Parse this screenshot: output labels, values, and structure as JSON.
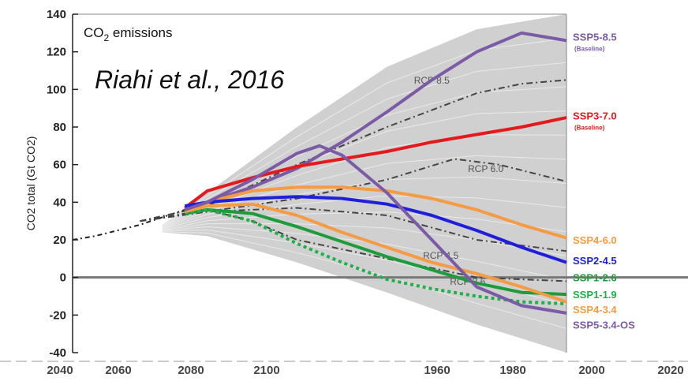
{
  "chart_data": {
    "type": "line",
    "panel_title": "CO",
    "panel_title_sub": "2",
    "panel_title_rest": " emissions",
    "citation": "Riahi et al., 2016",
    "ylabel": "CO2 total (Gt CO2)",
    "ylim": [
      -40,
      140
    ],
    "xlim": [
      1990,
      2100
    ],
    "y_ticks": [
      "140",
      "120",
      "100",
      "80",
      "60",
      "40",
      "20",
      "0",
      "-20",
      "-40"
    ],
    "x_tick_labels": [
      "2040",
      "2060",
      "2080",
      "2100",
      "1960",
      "1980",
      "2000",
      "2020"
    ],
    "grid": false,
    "legend": "right",
    "historical": {
      "name": "",
      "color": "#222222",
      "x": [
        1990,
        1995,
        2000,
        2005,
        2010,
        2015
      ],
      "y": [
        20,
        22,
        25,
        28,
        32,
        36
      ]
    },
    "series": [
      {
        "name": "SSP5-8.5",
        "sub": "(Baseline)",
        "color": "#7b5aa6",
        "style": "solid",
        "x": [
          2015,
          2020,
          2030,
          2040,
          2050,
          2060,
          2070,
          2080,
          2090,
          2100
        ],
        "y": [
          36,
          40,
          48,
          58,
          72,
          88,
          105,
          120,
          130,
          126
        ]
      },
      {
        "name": "SSP3-7.0",
        "sub": "(Baseline)",
        "color": "#e4191c",
        "style": "solid",
        "x": [
          2015,
          2020,
          2030,
          2040,
          2050,
          2060,
          2070,
          2080,
          2090,
          2100
        ],
        "y": [
          37,
          46,
          53,
          59,
          63,
          67,
          72,
          76,
          80,
          85
        ]
      },
      {
        "name": "SSP4-6.0",
        "sub": "",
        "color": "#f59b44",
        "style": "solid",
        "x": [
          2015,
          2020,
          2030,
          2040,
          2050,
          2060,
          2070,
          2080,
          2090,
          2100
        ],
        "y": [
          36,
          40,
          46,
          48,
          48,
          46,
          42,
          36,
          28,
          21
        ]
      },
      {
        "name": "SSP2-4.5",
        "sub": "",
        "color": "#1f1fdb",
        "style": "solid",
        "x": [
          2015,
          2020,
          2030,
          2040,
          2050,
          2060,
          2070,
          2080,
          2090,
          2100
        ],
        "y": [
          38,
          40,
          42,
          43,
          42,
          39,
          33,
          25,
          16,
          8
        ]
      },
      {
        "name": "SSP1-2.6",
        "sub": "",
        "color": "#1e9c3c",
        "style": "solid",
        "x": [
          2015,
          2020,
          2030,
          2040,
          2050,
          2060,
          2070,
          2080,
          2090,
          2100
        ],
        "y": [
          34,
          36,
          34,
          27,
          19,
          11,
          4,
          -3,
          -8,
          -9
        ]
      },
      {
        "name": "SSP1-1.9",
        "sub": "",
        "color": "#1fb04a",
        "style": "dotted",
        "x": [
          2015,
          2020,
          2030,
          2040,
          2050,
          2060,
          2070,
          2080,
          2090,
          2100
        ],
        "y": [
          34,
          36,
          30,
          18,
          8,
          -1,
          -6,
          -10,
          -13,
          -14
        ]
      },
      {
        "name": "SSP4-3.4",
        "sub": "",
        "color": "#f59b44",
        "style": "solid",
        "x": [
          2015,
          2020,
          2030,
          2040,
          2050,
          2060,
          2070,
          2080,
          2090,
          2100
        ],
        "y": [
          35,
          38,
          39,
          33,
          24,
          16,
          8,
          2,
          -5,
          -13
        ]
      },
      {
        "name": "SSP5-3.4-OS",
        "sub": "",
        "color": "#7b5aa6",
        "style": "solid",
        "x": [
          2015,
          2020,
          2030,
          2040,
          2045,
          2050,
          2060,
          2070,
          2080,
          2090,
          2100
        ],
        "y": [
          36,
          40,
          52,
          66,
          70,
          65,
          45,
          20,
          -5,
          -15,
          -19
        ]
      }
    ],
    "rcp_lines": [
      {
        "name": "RCP 8.5",
        "color": "#444444",
        "x": [
          2005,
          2020,
          2040,
          2060,
          2080,
          2090,
          2100
        ],
        "y": [
          30,
          38,
          60,
          80,
          98,
          103,
          105
        ]
      },
      {
        "name": "RCP 6.0",
        "color": "#444444",
        "x": [
          2005,
          2020,
          2040,
          2060,
          2075,
          2085,
          2100
        ],
        "y": [
          30,
          35,
          42,
          52,
          63,
          60,
          51
        ]
      },
      {
        "name": "RCP 4.5",
        "color": "#444444",
        "x": [
          2005,
          2020,
          2040,
          2060,
          2080,
          2100
        ],
        "y": [
          30,
          35,
          37,
          33,
          20,
          14
        ]
      },
      {
        "name": "RCP 2.6",
        "color": "#444444",
        "x": [
          2005,
          2020,
          2030,
          2040,
          2060,
          2080,
          2100
        ],
        "y": [
          30,
          36,
          30,
          20,
          10,
          0,
          -2
        ]
      }
    ],
    "envelope": {
      "color": "#c8c8c8",
      "x": [
        2010,
        2020,
        2040,
        2060,
        2080,
        2100
      ],
      "upper": [
        28,
        45,
        80,
        112,
        132,
        140
      ],
      "lower": [
        24,
        22,
        8,
        -8,
        -25,
        -40
      ]
    }
  }
}
